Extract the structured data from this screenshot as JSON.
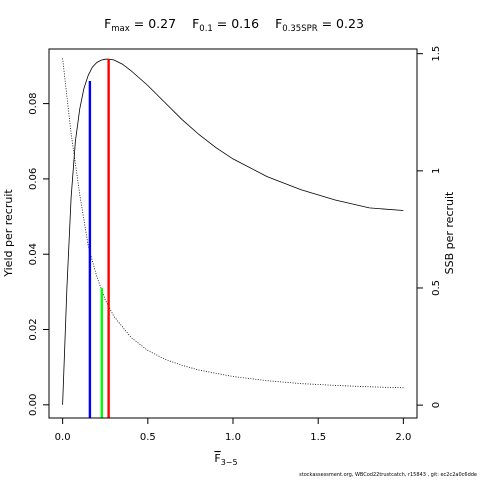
{
  "title_parts": [
    {
      "main": "F",
      "sub": "max",
      "rest": " = 0.27"
    },
    {
      "main": "F",
      "sub": "0.1",
      "rest": " = 0.16"
    },
    {
      "main": "F",
      "sub": "0.35SPR",
      "rest": " = 0.23"
    }
  ],
  "footer": "stockassessment.org, WBCod22trustcatch, r15843 , git: ec2c2a0c6dde",
  "chart_data": {
    "type": "line",
    "xlabel": "F",
    "xlabel_sub": "3−5",
    "ylabel_left": "Yield per recruit",
    "ylabel_right": "SSB per recruit",
    "xlim": [
      -0.08,
      2.08
    ],
    "ylim_left": [
      -0.0035,
      0.0945
    ],
    "ylim_right": [
      -0.055,
      1.52
    ],
    "xticks": [
      0,
      0.5,
      1,
      1.5,
      2
    ],
    "xtick_labels": [
      "0.0",
      "0.5",
      "1.0",
      "1.5",
      "2.0"
    ],
    "yticks_left": [
      0,
      0.02,
      0.04,
      0.06,
      0.08
    ],
    "ytick_labels_left": [
      "0.00",
      "0.02",
      "0.04",
      "0.06",
      "0.08"
    ],
    "yticks_right": [
      0,
      0.5,
      1,
      1.5
    ],
    "ytick_labels_right": [
      "0",
      "0.5",
      "1",
      "1.5"
    ],
    "grid": false,
    "series": [
      {
        "style": "solid",
        "axis": "left",
        "x": [
          0,
          0.025,
          0.05,
          0.075,
          0.1,
          0.125,
          0.15,
          0.175,
          0.2,
          0.225,
          0.25,
          0.27,
          0.3,
          0.35,
          0.4,
          0.5,
          0.6,
          0.7,
          0.8,
          0.9,
          1.0,
          1.2,
          1.4,
          1.6,
          1.8,
          2.0
        ],
        "y": [
          0,
          0.031,
          0.055,
          0.07,
          0.0785,
          0.084,
          0.0875,
          0.0897,
          0.0909,
          0.0915,
          0.0918,
          0.0918,
          0.0916,
          0.0905,
          0.0888,
          0.0848,
          0.0803,
          0.0758,
          0.0718,
          0.0683,
          0.0653,
          0.0606,
          0.0571,
          0.0544,
          0.0523,
          0.0516
        ]
      },
      {
        "style": "dotted",
        "axis": "right",
        "x": [
          0,
          0.05,
          0.1,
          0.15,
          0.2,
          0.25,
          0.3,
          0.4,
          0.5,
          0.6,
          0.7,
          0.8,
          1.0,
          1.2,
          1.4,
          1.6,
          1.8,
          2.0
        ],
        "y": [
          1.48,
          1.16,
          0.9,
          0.68,
          0.55,
          0.45,
          0.38,
          0.29,
          0.233,
          0.196,
          0.17,
          0.15,
          0.122,
          0.104,
          0.092,
          0.084,
          0.078,
          0.074
        ]
      }
    ],
    "reference_lines": [
      {
        "x": 0.16,
        "y": 0.086,
        "color": "#0000ff"
      },
      {
        "x": 0.23,
        "y": 0.031,
        "color": "#00ff00"
      },
      {
        "x": 0.27,
        "y": 0.0918,
        "color": "#ff0000"
      }
    ]
  }
}
